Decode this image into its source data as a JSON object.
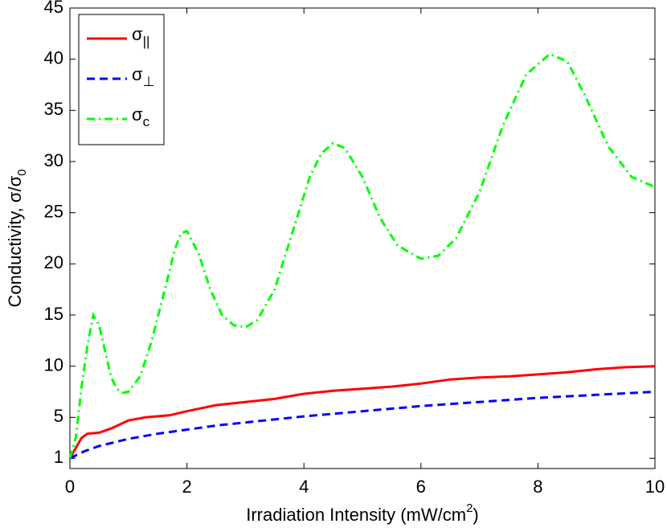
{
  "chart_data": {
    "type": "line",
    "xlabel": [
      "Irradiation Intensity (mW/cm",
      "2",
      ")"
    ],
    "ylabel": [
      "Conductivity, σ/σ",
      "0"
    ],
    "xlim": [
      0,
      10
    ],
    "xticks": [
      0,
      2,
      4,
      6,
      8,
      10
    ],
    "ylim": [
      0,
      45
    ],
    "yticks": [
      1,
      5,
      10,
      15,
      20,
      25,
      30,
      35,
      40,
      45
    ],
    "legend": "upper left",
    "grid": false,
    "series": [
      {
        "name": "σ||",
        "color": "#ff0000",
        "style": "solid",
        "x": [
          0,
          0.1,
          0.2,
          0.3,
          0.5,
          0.7,
          1,
          1.3,
          1.7,
          2,
          2.5,
          3,
          3.5,
          4,
          4.5,
          5,
          5.5,
          6,
          6.5,
          7,
          7.5,
          8,
          8.5,
          9,
          9.5,
          10
        ],
        "values": [
          1,
          2,
          3,
          3.4,
          3.5,
          3.9,
          4.7,
          5,
          5.2,
          5.6,
          6.2,
          6.5,
          6.8,
          7.3,
          7.6,
          7.8,
          8,
          8.3,
          8.7,
          8.9,
          9,
          9.2,
          9.4,
          9.7,
          9.9,
          10
        ]
      },
      {
        "name": "σ⊥",
        "color": "#0000ff",
        "style": "dashed",
        "x": [
          0,
          0.25,
          0.5,
          1,
          1.5,
          2,
          2.5,
          3,
          4,
          5,
          6,
          7,
          8,
          9,
          10
        ],
        "values": [
          1,
          1.7,
          2.2,
          2.9,
          3.4,
          3.8,
          4.2,
          4.5,
          5.1,
          5.6,
          6.1,
          6.5,
          6.9,
          7.2,
          7.5
        ]
      },
      {
        "name": "σc",
        "color": "#00ff00",
        "style": "dashdot",
        "x": [
          0,
          0.1,
          0.2,
          0.3,
          0.4,
          0.5,
          0.6,
          0.7,
          0.8,
          0.9,
          1,
          1.2,
          1.4,
          1.6,
          1.8,
          1.9,
          2,
          2.2,
          2.4,
          2.6,
          2.8,
          3,
          3.2,
          3.5,
          3.8,
          4.1,
          4.3,
          4.5,
          4.7,
          5,
          5.3,
          5.6,
          6,
          6.3,
          6.6,
          7,
          7.4,
          7.8,
          8.2,
          8.5,
          8.8,
          9.2,
          9.6,
          10
        ],
        "values": [
          1,
          3,
          8,
          12,
          15,
          14,
          11.5,
          9,
          7.8,
          7.4,
          7.5,
          9,
          12.5,
          17,
          21.5,
          23,
          23.2,
          21,
          17.5,
          15,
          14,
          13.8,
          14.5,
          17.5,
          23,
          28.5,
          30.8,
          31.8,
          31.3,
          28.5,
          24.5,
          21.8,
          20.5,
          20.8,
          22.5,
          27,
          33.5,
          38.5,
          40.5,
          39.8,
          36.5,
          31.5,
          28.5,
          27.5
        ]
      }
    ]
  }
}
